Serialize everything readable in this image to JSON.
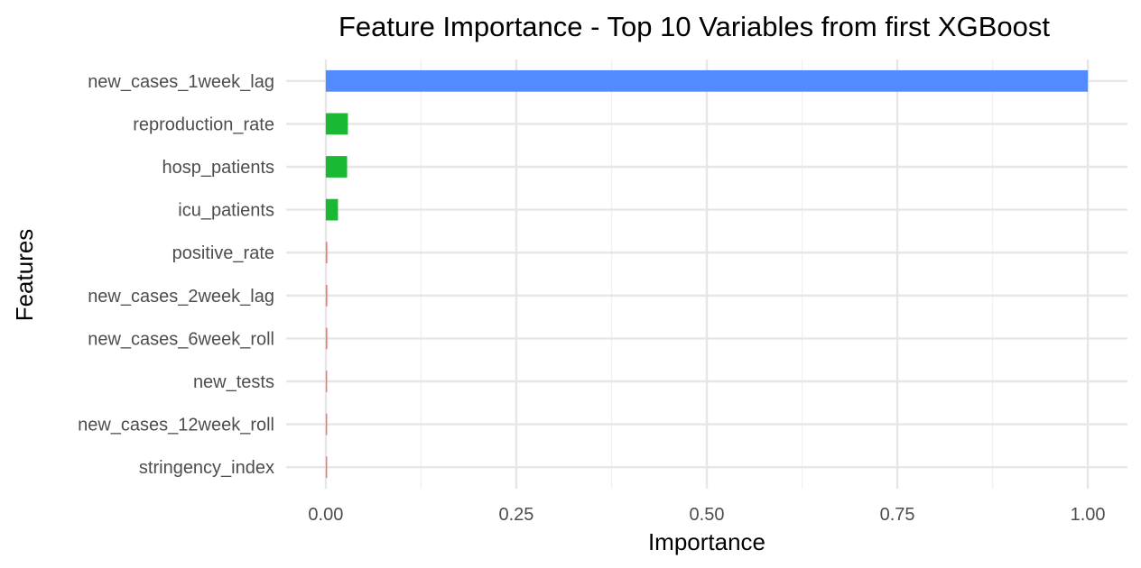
{
  "chart_data": {
    "type": "bar",
    "orientation": "horizontal",
    "title": "Feature Importance - Top 10 Variables from first XGBoost",
    "xlabel": "Importance",
    "ylabel": "Features",
    "xlim": [
      -0.052,
      1.052
    ],
    "x_ticks": [
      0.0,
      0.25,
      0.5,
      0.75,
      1.0
    ],
    "x_tick_labels": [
      "0.00",
      "0.25",
      "0.50",
      "0.75",
      "1.00"
    ],
    "grid": true,
    "legend": "none",
    "categories": [
      "new_cases_1week_lag",
      "reproduction_rate",
      "hosp_patients",
      "icu_patients",
      "positive_rate",
      "new_cases_2week_lag",
      "new_cases_6week_roll",
      "new_tests",
      "new_cases_12week_roll",
      "stringency_index"
    ],
    "values": [
      1.0,
      0.029,
      0.028,
      0.016,
      0.002,
      0.002,
      0.002,
      0.001,
      0.001,
      0.001
    ],
    "bar_colors": [
      "#528BFF",
      "#19B933",
      "#19B933",
      "#19B933",
      "#F8766D",
      "#F8766D",
      "#F8766D",
      "#F8766D",
      "#F8766D",
      "#F8766D"
    ]
  }
}
